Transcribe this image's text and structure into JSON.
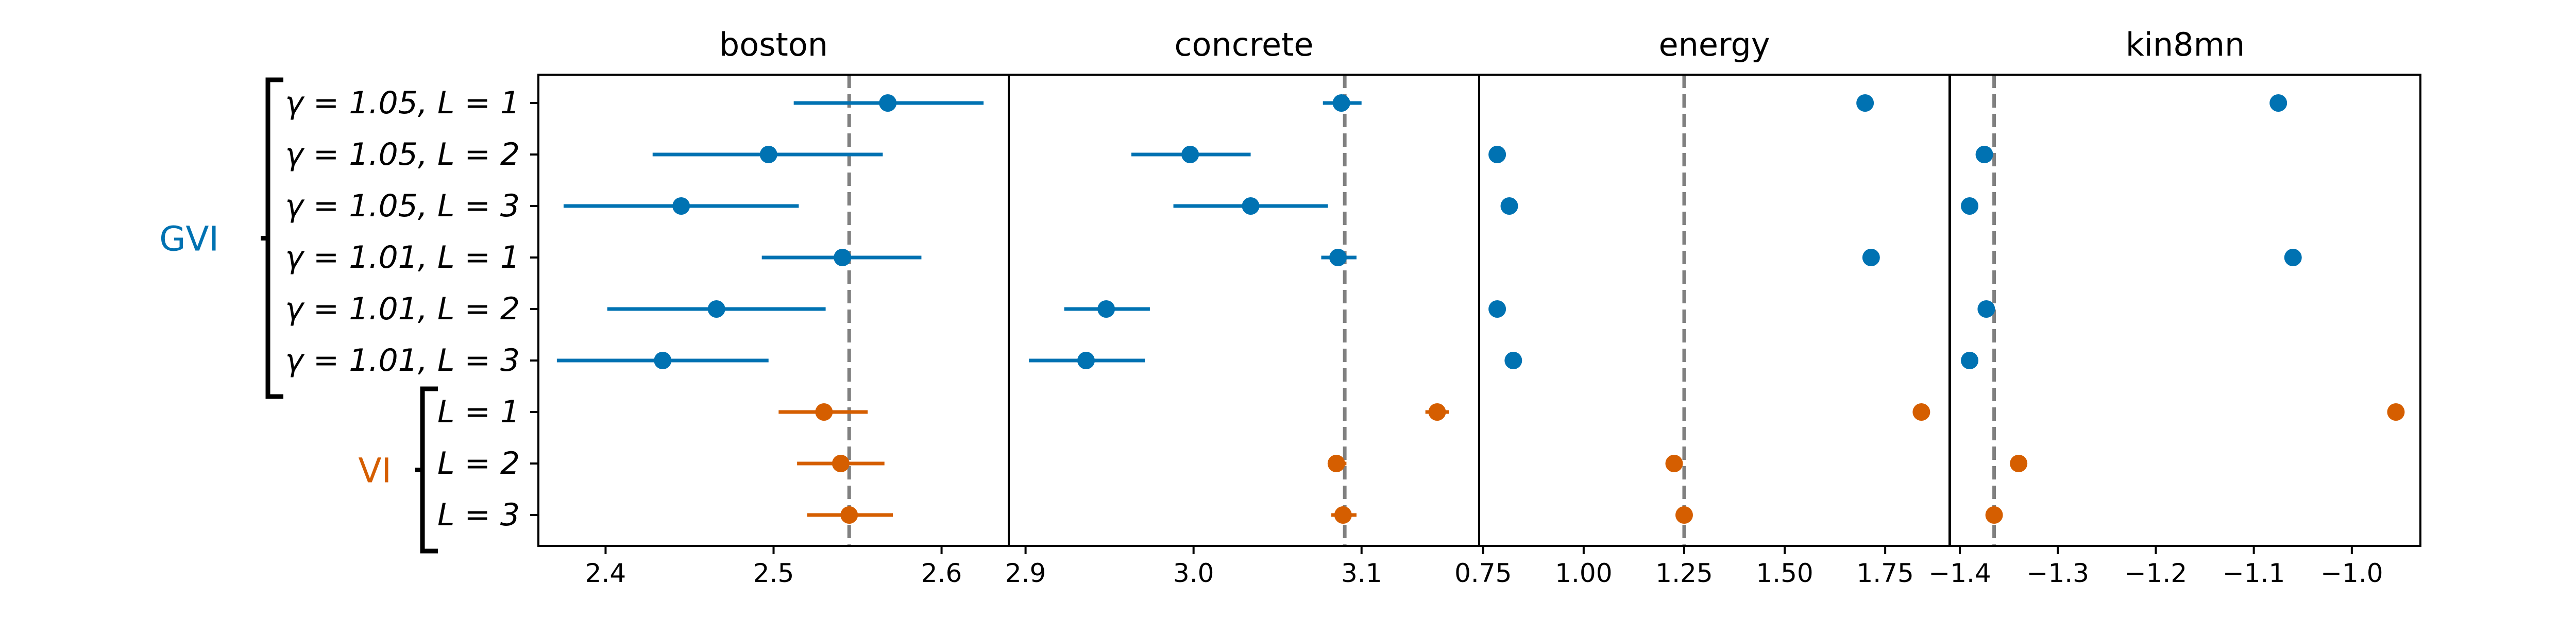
{
  "colors": {
    "gvi": "#0072b2",
    "vi": "#d55e00",
    "reference_line": "#808080",
    "axes": "#000000"
  },
  "groups": [
    {
      "label": "GVI",
      "color_key": "gvi",
      "rows": [
        0,
        1,
        2,
        3,
        4,
        5
      ]
    },
    {
      "label": "VI",
      "color_key": "vi",
      "rows": [
        6,
        7,
        8
      ]
    }
  ],
  "rows": [
    {
      "label": "γ = 1.05, L = 1",
      "group": "GVI"
    },
    {
      "label": "γ = 1.05, L = 2",
      "group": "GVI"
    },
    {
      "label": "γ = 1.05, L = 3",
      "group": "GVI"
    },
    {
      "label": "γ = 1.01, L = 1",
      "group": "GVI"
    },
    {
      "label": "γ = 1.01, L = 2",
      "group": "GVI"
    },
    {
      "label": "γ = 1.01, L = 3",
      "group": "GVI"
    },
    {
      "label": "L = 1",
      "group": "VI"
    },
    {
      "label": "L = 2",
      "group": "VI"
    },
    {
      "label": "L = 3",
      "group": "VI"
    }
  ],
  "chart_data": [
    {
      "type": "scatter",
      "title": "boston",
      "xlim": [
        2.36,
        2.64
      ],
      "xticks": [
        "2.4",
        "2.5",
        "2.6"
      ],
      "xtick_values": [
        2.4,
        2.5,
        2.6
      ],
      "reference_x": 2.545,
      "points": [
        {
          "value": 2.568,
          "lo": 2.512,
          "hi": 2.625
        },
        {
          "value": 2.497,
          "lo": 2.428,
          "hi": 2.565
        },
        {
          "value": 2.445,
          "lo": 2.375,
          "hi": 2.515
        },
        {
          "value": 2.541,
          "lo": 2.493,
          "hi": 2.588
        },
        {
          "value": 2.466,
          "lo": 2.401,
          "hi": 2.531
        },
        {
          "value": 2.434,
          "lo": 2.371,
          "hi": 2.497
        },
        {
          "value": 2.53,
          "lo": 2.503,
          "hi": 2.556
        },
        {
          "value": 2.54,
          "lo": 2.514,
          "hi": 2.566
        },
        {
          "value": 2.545,
          "lo": 2.52,
          "hi": 2.571
        }
      ]
    },
    {
      "type": "scatter",
      "title": "concrete",
      "xlim": [
        2.89,
        3.17
      ],
      "xticks": [
        "2.9",
        "3.0",
        "3.1"
      ],
      "xtick_values": [
        2.9,
        3.0,
        3.1
      ],
      "reference_x": 3.09,
      "points": [
        {
          "value": 3.088,
          "lo": 3.077,
          "hi": 3.1
        },
        {
          "value": 2.998,
          "lo": 2.963,
          "hi": 3.034
        },
        {
          "value": 3.034,
          "lo": 2.988,
          "hi": 3.08
        },
        {
          "value": 3.086,
          "lo": 3.076,
          "hi": 3.097
        },
        {
          "value": 2.948,
          "lo": 2.923,
          "hi": 2.974
        },
        {
          "value": 2.936,
          "lo": 2.902,
          "hi": 2.971
        },
        {
          "value": 3.145,
          "lo": 3.138,
          "hi": 3.152
        },
        {
          "value": 3.085,
          "lo": 3.08,
          "hi": 3.091
        },
        {
          "value": 3.089,
          "lo": 3.082,
          "hi": 3.097
        }
      ]
    },
    {
      "type": "scatter",
      "title": "energy",
      "xlim": [
        0.74,
        1.91
      ],
      "xticks": [
        "0.75",
        "1.00",
        "1.25",
        "1.50",
        "1.75"
      ],
      "xtick_values": [
        0.75,
        1.0,
        1.25,
        1.5,
        1.75
      ],
      "reference_x": 1.25,
      "points": [
        {
          "value": 1.7,
          "lo": 1.7,
          "hi": 1.7
        },
        {
          "value": 0.785,
          "lo": 0.78,
          "hi": 0.79
        },
        {
          "value": 0.815,
          "lo": 0.8,
          "hi": 0.83
        },
        {
          "value": 1.715,
          "lo": 1.715,
          "hi": 1.715
        },
        {
          "value": 0.785,
          "lo": 0.785,
          "hi": 0.785
        },
        {
          "value": 0.825,
          "lo": 0.825,
          "hi": 0.825
        },
        {
          "value": 1.84,
          "lo": 1.84,
          "hi": 1.84
        },
        {
          "value": 1.225,
          "lo": 1.22,
          "hi": 1.23
        },
        {
          "value": 1.25,
          "lo": 1.245,
          "hi": 1.255
        }
      ]
    },
    {
      "type": "scatter",
      "title": "kin8mn",
      "xlim": [
        -1.41,
        -0.93
      ],
      "xticks": [
        "−1.4",
        "−1.3",
        "−1.2",
        "−1.1",
        "−1.0"
      ],
      "xtick_values": [
        -1.4,
        -1.3,
        -1.2,
        -1.1,
        -1.0
      ],
      "reference_x": -1.365,
      "points": [
        {
          "value": -1.075,
          "lo": -1.075,
          "hi": -1.075
        },
        {
          "value": -1.375,
          "lo": -1.375,
          "hi": -1.375
        },
        {
          "value": -1.39,
          "lo": -1.39,
          "hi": -1.39
        },
        {
          "value": -1.06,
          "lo": -1.06,
          "hi": -1.06
        },
        {
          "value": -1.373,
          "lo": -1.373,
          "hi": -1.373
        },
        {
          "value": -1.39,
          "lo": -1.39,
          "hi": -1.39
        },
        {
          "value": -0.955,
          "lo": -0.955,
          "hi": -0.955
        },
        {
          "value": -1.34,
          "lo": -1.34,
          "hi": -1.34
        },
        {
          "value": -1.365,
          "lo": -1.365,
          "hi": -1.365
        }
      ]
    }
  ]
}
